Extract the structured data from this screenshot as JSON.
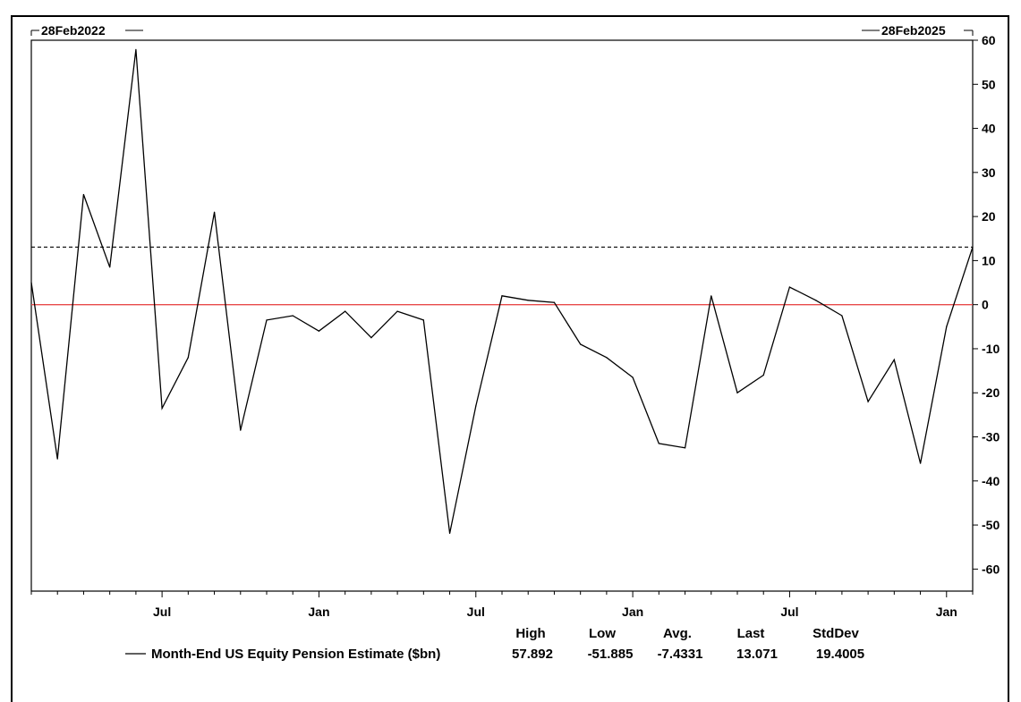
{
  "chart_data": {
    "type": "line",
    "start_label": "28Feb2022",
    "end_label": "28Feb2025",
    "ylim": [
      -65,
      60
    ],
    "y_ticks": [
      "60",
      "50",
      "40",
      "30",
      "20",
      "10",
      "0",
      "-10",
      "-20",
      "-30",
      "-40",
      "-50",
      "-60"
    ],
    "x_tick_labels": [
      "Jul",
      "Jan",
      "Jul",
      "Jan",
      "Jul",
      "Jan"
    ],
    "x": [
      "2022-02",
      "2022-03",
      "2022-04",
      "2022-05",
      "2022-06",
      "2022-07",
      "2022-08",
      "2022-09",
      "2022-10",
      "2022-11",
      "2022-12",
      "2023-01",
      "2023-02",
      "2023-03",
      "2023-04",
      "2023-05",
      "2023-06",
      "2023-07",
      "2023-08",
      "2023-09",
      "2023-10",
      "2023-11",
      "2023-12",
      "2024-01",
      "2024-02",
      "2024-03",
      "2024-04",
      "2024-05",
      "2024-06",
      "2024-07",
      "2024-08",
      "2024-09",
      "2024-10",
      "2024-11",
      "2024-12",
      "2025-01",
      "2025-02"
    ],
    "series": [
      {
        "name": "Month-End US Equity Pension Estimate ($bn)",
        "color": "#000000",
        "values": [
          5,
          -35,
          25,
          8.5,
          57.892,
          -23.5,
          -12,
          21,
          -28.5,
          -3.5,
          -2.5,
          -6,
          -1.5,
          -7.5,
          -1.5,
          -3.5,
          -51.885,
          -23,
          2,
          1,
          0.5,
          -9,
          -12,
          -16.5,
          -31.5,
          -32.5,
          2,
          -20,
          -16,
          4,
          1,
          -2.5,
          -22,
          -12.5,
          -36,
          -5,
          13.071
        ]
      }
    ],
    "reference_lines": [
      {
        "value": 0,
        "color": "#e84a4a",
        "style": "solid"
      },
      {
        "value": 13.071,
        "color": "#000000",
        "style": "dashed"
      }
    ],
    "stats": {
      "headers": [
        "High",
        "Low",
        "Avg.",
        "Last",
        "StdDev"
      ],
      "values": [
        "57.892",
        "-51.885",
        "-7.4331",
        "13.071",
        "19.4005"
      ]
    }
  }
}
